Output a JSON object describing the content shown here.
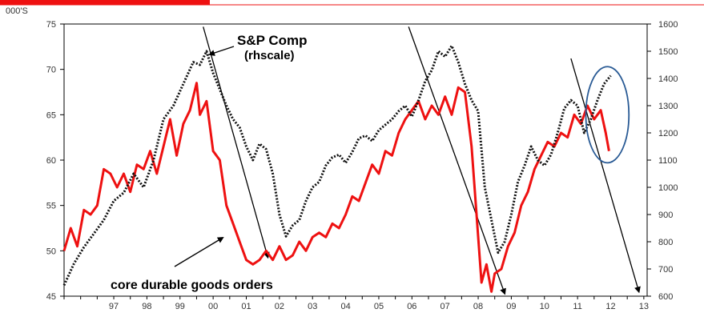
{
  "chart_data": {
    "type": "line",
    "title": "",
    "y_unit_left": "000'S",
    "ylim_left": [
      45,
      75
    ],
    "ylim_right": [
      600,
      1600
    ],
    "y_ticks_left": [
      45,
      50,
      55,
      60,
      65,
      70,
      75
    ],
    "y_ticks_right": [
      600,
      700,
      800,
      900,
      1000,
      1100,
      1200,
      1300,
      1400,
      1500,
      1600
    ],
    "x_range": [
      1996.0,
      2013.6
    ],
    "x_ticks": [
      {
        "label": "97",
        "x": 1997
      },
      {
        "label": "98",
        "x": 1998
      },
      {
        "label": "99",
        "x": 1999
      },
      {
        "label": "00",
        "x": 2000
      },
      {
        "label": "01",
        "x": 2001
      },
      {
        "label": "02",
        "x": 2002
      },
      {
        "label": "03",
        "x": 2003
      },
      {
        "label": "04",
        "x": 2004
      },
      {
        "label": "05",
        "x": 2005
      },
      {
        "label": "06",
        "x": 2006
      },
      {
        "label": "07",
        "x": 2007
      },
      {
        "label": "08",
        "x": 2008
      },
      {
        "label": "09",
        "x": 2009
      },
      {
        "label": "10",
        "x": 2010
      },
      {
        "label": "11",
        "x": 2011
      },
      {
        "label": "12",
        "x": 2012
      },
      {
        "label": "13",
        "x": 2013
      }
    ],
    "series": [
      {
        "name": "core durable goods orders",
        "axis": "left",
        "color": "#ee1111",
        "style": "solid",
        "x": [
          1996.0,
          1996.2,
          1996.4,
          1996.6,
          1996.8,
          1997.0,
          1997.2,
          1997.4,
          1997.6,
          1997.8,
          1998.0,
          1998.2,
          1998.4,
          1998.6,
          1998.8,
          1999.0,
          1999.2,
          1999.4,
          1999.6,
          1999.8,
          2000.0,
          2000.1,
          2000.3,
          2000.5,
          2000.7,
          2000.9,
          2001.1,
          2001.3,
          2001.5,
          2001.7,
          2001.9,
          2002.1,
          2002.3,
          2002.5,
          2002.7,
          2002.9,
          2003.1,
          2003.3,
          2003.5,
          2003.7,
          2003.9,
          2004.1,
          2004.3,
          2004.5,
          2004.7,
          2004.9,
          2005.1,
          2005.3,
          2005.5,
          2005.7,
          2005.9,
          2006.1,
          2006.3,
          2006.5,
          2006.7,
          2006.9,
          2007.1,
          2007.3,
          2007.5,
          2007.7,
          2007.9,
          2008.1,
          2008.3,
          2008.45,
          2008.6,
          2008.75,
          2008.9,
          2009.0,
          2009.2,
          2009.4,
          2009.6,
          2009.8,
          2010.0,
          2010.2,
          2010.4,
          2010.6,
          2010.8,
          2011.0,
          2011.2,
          2011.4,
          2011.6,
          2011.8,
          2012.0,
          2012.2,
          2012.35,
          2012.45
        ],
        "values": [
          50.0,
          52.5,
          50.5,
          54.5,
          54.0,
          55.0,
          59.0,
          58.5,
          57.0,
          58.5,
          56.5,
          59.5,
          59.0,
          61.0,
          58.5,
          61.5,
          64.5,
          60.5,
          64.0,
          65.5,
          68.5,
          65.0,
          66.5,
          61.0,
          60.0,
          55.0,
          53.0,
          51.0,
          49.0,
          48.5,
          49.0,
          50.0,
          49.0,
          50.5,
          49.0,
          49.5,
          51.0,
          50.0,
          51.5,
          52.0,
          51.5,
          53.0,
          52.5,
          54.0,
          56.0,
          55.5,
          57.5,
          59.5,
          58.5,
          61.0,
          60.5,
          63.0,
          64.5,
          65.5,
          66.5,
          64.5,
          66.0,
          65.0,
          67.0,
          65.0,
          68.0,
          67.5,
          61.5,
          54.0,
          46.5,
          48.5,
          45.5,
          47.5,
          48.0,
          50.5,
          52.0,
          55.0,
          56.5,
          59.0,
          60.5,
          62.0,
          61.5,
          63.0,
          62.5,
          65.0,
          64.0,
          66.0,
          64.5,
          65.5,
          63.0,
          61.0
        ]
      },
      {
        "name": "S&P Comp (rhscale)",
        "axis": "right",
        "color": "#111111",
        "style": "dotted",
        "x": [
          1996.0,
          1996.3,
          1996.6,
          1996.9,
          1997.2,
          1997.5,
          1997.8,
          1998.1,
          1998.4,
          1998.7,
          1999.0,
          1999.3,
          1999.6,
          1999.9,
          2000.1,
          2000.3,
          2000.5,
          2000.7,
          2000.9,
          2001.1,
          2001.3,
          2001.5,
          2001.7,
          2001.9,
          2002.1,
          2002.3,
          2002.5,
          2002.7,
          2002.9,
          2003.1,
          2003.3,
          2003.5,
          2003.7,
          2003.9,
          2004.1,
          2004.3,
          2004.5,
          2004.7,
          2004.9,
          2005.1,
          2005.3,
          2005.5,
          2005.7,
          2005.9,
          2006.1,
          2006.3,
          2006.5,
          2006.7,
          2006.9,
          2007.1,
          2007.3,
          2007.5,
          2007.7,
          2007.9,
          2008.1,
          2008.3,
          2008.5,
          2008.7,
          2008.9,
          2009.1,
          2009.3,
          2009.5,
          2009.7,
          2009.9,
          2010.1,
          2010.3,
          2010.5,
          2010.7,
          2010.9,
          2011.1,
          2011.3,
          2011.5,
          2011.7,
          2011.9,
          2012.1,
          2012.3,
          2012.5
        ],
        "values": [
          640,
          720,
          780,
          830,
          880,
          950,
          980,
          1050,
          1000,
          1100,
          1250,
          1300,
          1380,
          1460,
          1450,
          1500,
          1420,
          1360,
          1300,
          1250,
          1220,
          1150,
          1100,
          1160,
          1140,
          1050,
          900,
          820,
          860,
          880,
          950,
          1000,
          1020,
          1080,
          1110,
          1120,
          1090,
          1130,
          1180,
          1190,
          1170,
          1210,
          1230,
          1250,
          1280,
          1300,
          1260,
          1320,
          1390,
          1430,
          1500,
          1480,
          1520,
          1460,
          1380,
          1320,
          1280,
          1000,
          880,
          760,
          800,
          900,
          1020,
          1080,
          1150,
          1100,
          1080,
          1120,
          1200,
          1290,
          1320,
          1300,
          1200,
          1250,
          1320,
          1380,
          1410
        ]
      }
    ],
    "annotations": [
      {
        "text": "S&P Comp",
        "target": "S&P Comp (rhscale)"
      },
      {
        "text": "(rhscale)",
        "target": "S&P Comp (rhscale)"
      },
      {
        "text": "core durable goods orders",
        "target": "core durable goods orders"
      }
    ],
    "trend_lines": [
      {
        "name": "downtrend-2000",
        "from": [
          2000.2,
          74.7
        ],
        "to": [
          2002.15,
          49.3
        ]
      },
      {
        "name": "downtrend-2007",
        "from": [
          2006.4,
          74.7
        ],
        "to": [
          2009.3,
          45.3
        ]
      },
      {
        "name": "downtrend-2011",
        "from": [
          2011.3,
          71.2
        ],
        "to": [
          2013.35,
          45.5
        ]
      }
    ],
    "highlight_ellipse": {
      "center": [
        2012.4,
        65.0
      ],
      "radius_x": 0.65,
      "radius_y": 5.3
    }
  }
}
